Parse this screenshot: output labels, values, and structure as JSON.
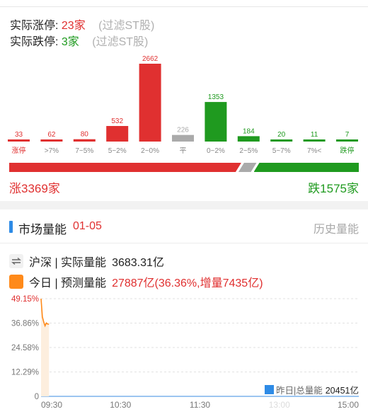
{
  "limit_stats": {
    "up_label": "实际涨停:",
    "up_count": "23家",
    "down_label": "实际跌停:",
    "down_count": "3家",
    "filter_note": "(过滤ST股)"
  },
  "colors": {
    "up": "#e03030",
    "flat": "#aaaaaa",
    "down": "#1f9a1f",
    "accent": "#2e8be6",
    "today": "#ff8a1a"
  },
  "chart_data": [
    {
      "type": "bar",
      "categories": [
        "涨停",
        ">7%",
        "7~5%",
        "5~2%",
        "2~0%",
        "平",
        "0~2%",
        "2~5%",
        "5~7%",
        "7%<",
        "跌停"
      ],
      "values": [
        33,
        62,
        80,
        532,
        2662,
        226,
        1353,
        184,
        20,
        11,
        7
      ],
      "value_labels": [
        "33",
        "62",
        "80",
        "532",
        "2662",
        "226",
        "1353",
        "184",
        "20",
        "11",
        "7"
      ],
      "groups": [
        "up",
        "up",
        "up",
        "up",
        "up",
        "flat",
        "down",
        "down",
        "down",
        "down",
        "down"
      ],
      "title": "",
      "xlabel": "",
      "ylabel": ""
    },
    {
      "type": "area",
      "title": "",
      "x_ticks": [
        "09:30",
        "10:30",
        "11:30",
        "15:00"
      ],
      "x_extra_tick": "13:00",
      "y_ticks": [
        "49.15%",
        "36.86%",
        "24.58%",
        "12.29%",
        "0"
      ],
      "ylim": [
        0,
        49.15
      ],
      "grid": true,
      "series": [
        {
          "name": "今日",
          "x": [
            0,
            1,
            2,
            3,
            4,
            5,
            6
          ],
          "y": [
            49.15,
            40.0,
            37.5,
            35.5,
            36.9,
            36.4,
            36.36
          ]
        }
      ],
      "legend": {
        "label": "昨日|总量能",
        "value": "20451亿",
        "placement": "bottom-right"
      }
    }
  ],
  "summary": {
    "up_total": "涨3369家",
    "down_total": "跌1575家"
  },
  "volume_section": {
    "title": "市场量能",
    "date": "01-05",
    "history_link": "历史量能",
    "actual_icon": "swap-arrows-icon",
    "actual_label": "沪深 | 实际量能",
    "actual_value": "3683.31亿",
    "forecast_icon": "orange-square-icon",
    "forecast_label": "今日 | 预测量能",
    "forecast_value": "27887亿(36.36%,增量7435亿)"
  }
}
